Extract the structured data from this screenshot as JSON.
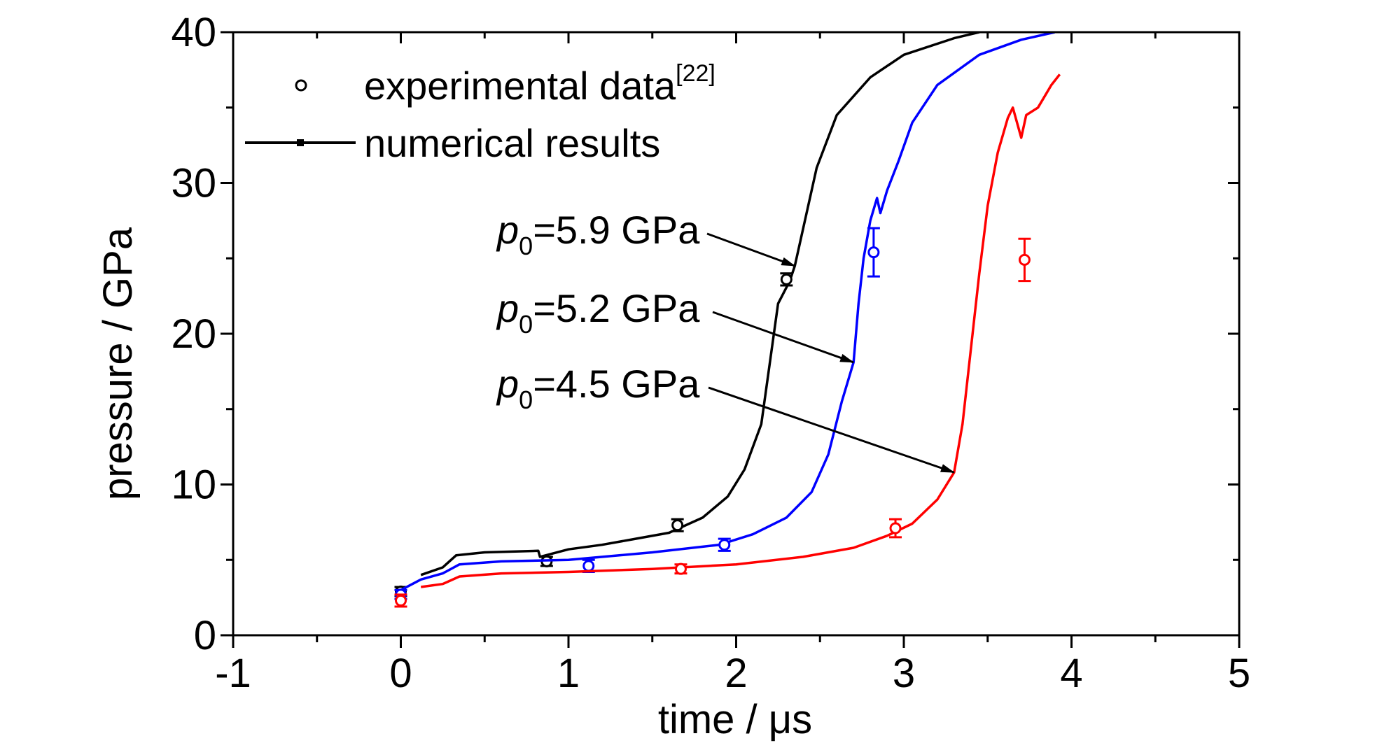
{
  "chart_data": {
    "type": "line",
    "xlabel": "time / μs",
    "ylabel": "pressure / GPa",
    "xlim": [
      -1,
      5
    ],
    "ylim": [
      0,
      40
    ],
    "x_ticks": [
      "-1",
      "0",
      "1",
      "2",
      "3",
      "4",
      "5"
    ],
    "y_ticks": [
      "0",
      "10",
      "20",
      "30",
      "40"
    ],
    "grid": false,
    "legend": {
      "placement": "top-left",
      "entries": [
        {
          "label": "experimental data",
          "superscript": "[22]",
          "marker": "open-circle"
        },
        {
          "label": "numerical results",
          "marker": "line"
        }
      ]
    },
    "series": [
      {
        "color": "#000000",
        "annotation": {
          "prefix": "p",
          "subscript": "0",
          "suffix": "=5.9 GPa",
          "target": [
            2.35,
            24.5
          ]
        },
        "numerical": [
          [
            0.12,
            4.0
          ],
          [
            0.25,
            4.5
          ],
          [
            0.33,
            5.3
          ],
          [
            0.5,
            5.5
          ],
          [
            0.82,
            5.6
          ],
          [
            0.83,
            5.2
          ],
          [
            1.0,
            5.7
          ],
          [
            1.2,
            6.0
          ],
          [
            1.4,
            6.4
          ],
          [
            1.6,
            6.8
          ],
          [
            1.8,
            7.8
          ],
          [
            1.95,
            9.2
          ],
          [
            2.05,
            11.0
          ],
          [
            2.15,
            14.0
          ],
          [
            2.2,
            18.0
          ],
          [
            2.25,
            22.0
          ],
          [
            2.32,
            23.5
          ],
          [
            2.35,
            24.5
          ],
          [
            2.4,
            27.0
          ],
          [
            2.48,
            31.0
          ],
          [
            2.6,
            34.5
          ],
          [
            2.8,
            37.0
          ],
          [
            3.0,
            38.5
          ],
          [
            3.3,
            39.6
          ],
          [
            3.45,
            40.0
          ]
        ],
        "experimental": [
          {
            "x": 0.0,
            "y": 2.9,
            "err": 0.3
          },
          {
            "x": 0.87,
            "y": 4.9,
            "err": 0.3
          },
          {
            "x": 1.65,
            "y": 7.3,
            "err": 0.4
          },
          {
            "x": 2.3,
            "y": 23.6,
            "err": 0.4
          }
        ]
      },
      {
        "color": "#0000ff",
        "annotation": {
          "prefix": "p",
          "subscript": "0",
          "suffix": "=5.2 GPa",
          "target": [
            2.7,
            18.1
          ]
        },
        "numerical": [
          [
            0.0,
            3.0
          ],
          [
            0.12,
            3.7
          ],
          [
            0.25,
            4.1
          ],
          [
            0.35,
            4.7
          ],
          [
            0.6,
            4.9
          ],
          [
            1.0,
            5.0
          ],
          [
            1.5,
            5.5
          ],
          [
            1.9,
            6.0
          ],
          [
            2.1,
            6.7
          ],
          [
            2.3,
            7.8
          ],
          [
            2.45,
            9.5
          ],
          [
            2.55,
            12.0
          ],
          [
            2.63,
            15.5
          ],
          [
            2.7,
            18.1
          ],
          [
            2.73,
            22.0
          ],
          [
            2.76,
            25.0
          ],
          [
            2.8,
            27.5
          ],
          [
            2.84,
            29.0
          ],
          [
            2.86,
            28.0
          ],
          [
            2.9,
            29.5
          ],
          [
            2.97,
            31.5
          ],
          [
            3.05,
            34.0
          ],
          [
            3.2,
            36.5
          ],
          [
            3.45,
            38.5
          ],
          [
            3.7,
            39.5
          ],
          [
            3.9,
            40.0
          ]
        ],
        "experimental": [
          {
            "x": 0.0,
            "y": 2.7,
            "err": 0.3
          },
          {
            "x": 1.12,
            "y": 4.6,
            "err": 0.4
          },
          {
            "x": 1.93,
            "y": 6.0,
            "err": 0.4
          },
          {
            "x": 2.82,
            "y": 25.4,
            "err": 1.6
          }
        ]
      },
      {
        "color": "#ff0000",
        "annotation": {
          "prefix": "p",
          "subscript": "0",
          "suffix": "=4.5 GPa",
          "target": [
            3.3,
            10.8
          ]
        },
        "numerical": [
          [
            0.12,
            3.2
          ],
          [
            0.25,
            3.4
          ],
          [
            0.35,
            3.9
          ],
          [
            0.6,
            4.1
          ],
          [
            1.0,
            4.2
          ],
          [
            1.5,
            4.4
          ],
          [
            2.0,
            4.7
          ],
          [
            2.4,
            5.2
          ],
          [
            2.7,
            5.8
          ],
          [
            2.9,
            6.6
          ],
          [
            3.05,
            7.4
          ],
          [
            3.2,
            9.0
          ],
          [
            3.3,
            10.8
          ],
          [
            3.35,
            14.0
          ],
          [
            3.4,
            19.0
          ],
          [
            3.45,
            24.0
          ],
          [
            3.5,
            28.5
          ],
          [
            3.56,
            32.0
          ],
          [
            3.62,
            34.3
          ],
          [
            3.65,
            35.0
          ],
          [
            3.7,
            33.0
          ],
          [
            3.73,
            34.5
          ],
          [
            3.8,
            35.0
          ],
          [
            3.88,
            36.5
          ],
          [
            3.93,
            37.2
          ]
        ],
        "experimental": [
          {
            "x": 0.0,
            "y": 2.3,
            "err": 0.4
          },
          {
            "x": 1.67,
            "y": 4.4,
            "err": 0.3
          },
          {
            "x": 2.95,
            "y": 7.1,
            "err": 0.6
          },
          {
            "x": 3.72,
            "y": 24.9,
            "err": 1.4
          }
        ]
      }
    ]
  }
}
